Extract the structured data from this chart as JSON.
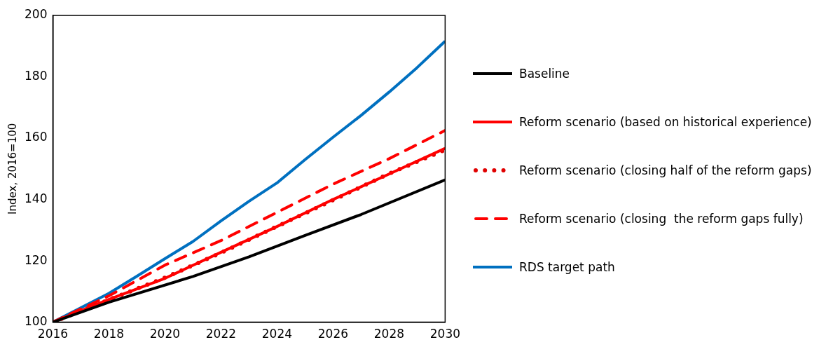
{
  "chart_data": {
    "type": "line",
    "ylabel": "Index, 2016=100",
    "xlim": [
      2016,
      2030
    ],
    "xticks": [
      2016,
      2018,
      2020,
      2022,
      2024,
      2026,
      2028,
      2030
    ],
    "ylim": [
      100,
      200
    ],
    "yticks": [
      100,
      120,
      140,
      160,
      180,
      200
    ],
    "grid": false,
    "legend": "right",
    "marker": "none",
    "series": [
      {
        "name": "Baseline",
        "color": "#000000",
        "line_style": "solid",
        "x": [
          2016,
          2018,
          2021,
          2023,
          2025,
          2027,
          2030
        ],
        "values": [
          100,
          106.5,
          114.9,
          121.3,
          128.3,
          135.1,
          146.4
        ]
      },
      {
        "name": "Reform scenario (based on historical experience)",
        "color": "#ff0000",
        "line_style": "solid",
        "x": [
          2016,
          2018,
          2020,
          2022,
          2024,
          2026,
          2028,
          2030
        ],
        "values": [
          100,
          107.4,
          114.3,
          122.8,
          131.2,
          140,
          148.3,
          156.7
        ]
      },
      {
        "name": "Reform scenario (closing half of the reform gaps)",
        "color": "#e00000",
        "line_style": "dotted",
        "x": [
          2016,
          2018,
          2020,
          2022,
          2024,
          2026,
          2028,
          2030
        ],
        "values": [
          100,
          107.3,
          114.5,
          122.6,
          131.2,
          139.8,
          148.4,
          156.2
        ]
      },
      {
        "name": "Reform scenario (closing  the reform gaps fully)",
        "color": "#ff0000",
        "line_style": "dashed",
        "x": [
          2016,
          2018,
          2020,
          2022,
          2024,
          2026,
          2028,
          2030
        ],
        "values": [
          100,
          108.6,
          118.6,
          126.6,
          135.8,
          145,
          153.3,
          162.5
        ]
      },
      {
        "name": "RDS target path",
        "color": "#0070c0",
        "line_style": "solid",
        "x": [
          2016,
          2018,
          2019,
          2020,
          2021,
          2022,
          2023,
          2024,
          2025,
          2026,
          2027,
          2028,
          2029,
          2030
        ],
        "values": [
          100,
          109.4,
          115,
          120.7,
          126.3,
          133,
          139.4,
          145.4,
          153,
          160.3,
          167.4,
          175,
          183,
          191.6
        ]
      }
    ]
  }
}
